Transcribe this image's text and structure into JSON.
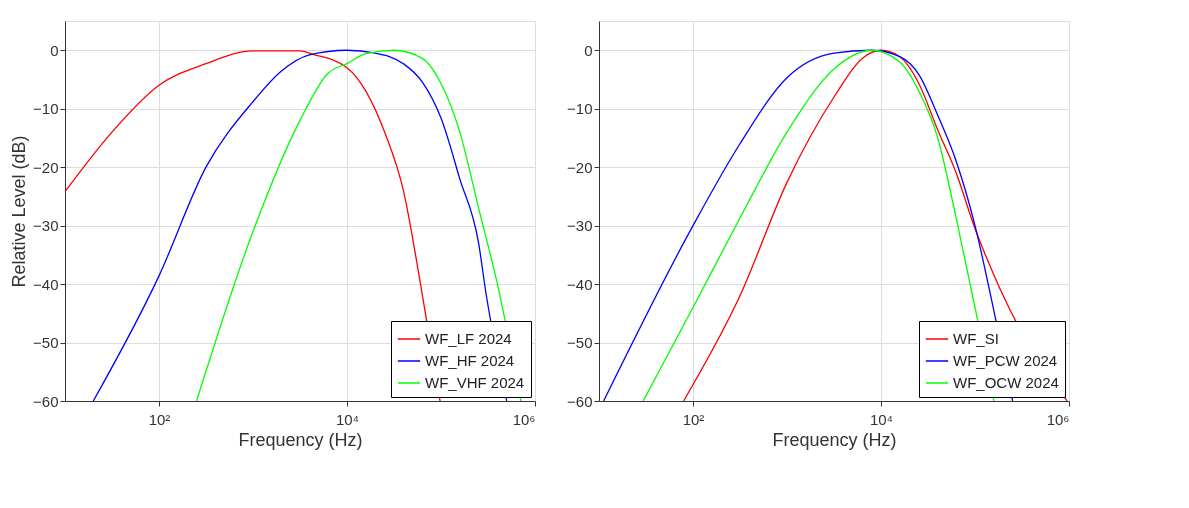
{
  "chart_data": [
    {
      "type": "line",
      "xlabel": "Frequency (Hz)",
      "ylabel": "Relative Level (dB)",
      "xlim": [
        10,
        1000000
      ],
      "ylim": [
        -60,
        5
      ],
      "log": "x",
      "grid": true,
      "legend": "bottom right",
      "xticks": [
        {
          "value": 100,
          "label": "10²"
        },
        {
          "value": 10000,
          "label": "10⁴"
        },
        {
          "value": 1000000,
          "label": "10⁶"
        }
      ],
      "yticks": [
        -60,
        -50,
        -40,
        -30,
        -20,
        -10,
        0
      ],
      "series": [
        {
          "name": "WF_LF 2024",
          "color": "#ff0000",
          "x": [
            10,
            31.6,
            100,
            316,
            1000,
            3162,
            4365,
            10000,
            15849,
            25119,
            39811,
            63096,
            97724
          ],
          "values": [
            -24.2,
            -14,
            -6,
            -2.3,
            -0.1,
            -0.1,
            -0.7,
            -3,
            -7,
            -14,
            -24,
            -41.7,
            -60
          ]
        },
        {
          "name": "WF_HF 2024",
          "color": "#0000ff",
          "x": [
            20,
            100,
            316,
            1000,
            1995,
            3981,
            10000,
            19953,
            39811,
            63096,
            100000,
            158489,
            251189,
            301995,
            501187
          ],
          "values": [
            -60,
            -38.6,
            -20,
            -8.8,
            -3.6,
            -0.8,
            0,
            -0.5,
            -2.3,
            -5.4,
            -11.6,
            -22,
            -33,
            -41.7,
            -60
          ]
        },
        {
          "name": "WF_VHF 2024",
          "color": "#00ff00",
          "x": [
            251,
            1000,
            3162,
            6310,
            10000,
            15849,
            31623,
            63096,
            100000,
            158489,
            251189,
            398107,
            707946
          ],
          "values": [
            -60,
            -31,
            -12,
            -3.9,
            -2.3,
            -0.6,
            0,
            -1.4,
            -5.7,
            -14,
            -27,
            -40,
            -60
          ]
        }
      ]
    },
    {
      "type": "line",
      "xlabel": "Frequency (Hz)",
      "xlim": [
        10,
        1000000
      ],
      "ylim": [
        -60,
        5
      ],
      "log": "x",
      "grid": true,
      "legend": "bottom right",
      "xticks": [
        {
          "value": 100,
          "label": "10²"
        },
        {
          "value": 10000,
          "label": "10⁴"
        },
        {
          "value": 1000000,
          "label": "10⁶"
        }
      ],
      "yticks": [
        -60,
        -50,
        -40,
        -30,
        -20,
        -10,
        0
      ],
      "series": [
        {
          "name": "WF_SI",
          "color": "#ff0000",
          "x": [
            79.4,
            316,
            1000,
            3162,
            6310,
            10000,
            15849,
            25119,
            39811,
            63096,
            100000,
            158489,
            199526,
            954993
          ],
          "values": [
            -60,
            -42,
            -22.6,
            -8,
            -1.4,
            0,
            -1.1,
            -5.6,
            -13.5,
            -21,
            -30.5,
            -38.4,
            -42,
            -60
          ]
        },
        {
          "name": "WF_PCW 2024",
          "color": "#0000ff",
          "x": [
            11.2,
            100,
            316,
            1000,
            3162,
            7943,
            15849,
            25119,
            39811,
            63096,
            100000,
            158489,
            251189
          ],
          "values": [
            -60,
            -30,
            -16,
            -4.7,
            -0.5,
            0,
            -1.1,
            -4.1,
            -11,
            -19,
            -30,
            -44.5,
            -60
          ]
        },
        {
          "name": "WF_OCW 2024",
          "color": "#00ff00",
          "x": [
            29.5,
            100,
            316,
            1000,
            3162,
            7943,
            15849,
            25119,
            39811,
            63096,
            100000,
            158489
          ],
          "values": [
            -60,
            -44,
            -28.7,
            -14,
            -3.2,
            0,
            -2,
            -6.9,
            -14.8,
            -28.7,
            -44,
            -60
          ]
        }
      ]
    }
  ]
}
